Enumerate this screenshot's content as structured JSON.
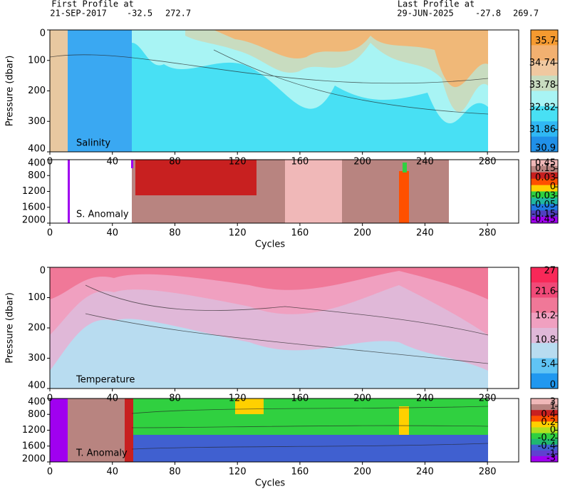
{
  "header": {
    "first_title": "First Profile at",
    "first_date": "21-SEP-2017",
    "first_lat": "-32.5",
    "first_lon": "272.7",
    "last_title": "Last Profile at",
    "last_date": "29-JUN-2025",
    "last_lat": "-27.8",
    "last_lon": "269.7"
  },
  "chart_data": [
    {
      "type": "heatmap",
      "label": "Salinity",
      "ylabel": "Pressure (dbar)",
      "xlim": [
        0,
        300
      ],
      "xticks": [
        0,
        40,
        80,
        120,
        160,
        200,
        240,
        280
      ],
      "ylim": [
        400,
        0
      ],
      "yticks": [
        0,
        100,
        200,
        300,
        400
      ],
      "colorbar": {
        "levels": [
          35.7,
          34.74,
          33.78,
          32.82,
          31.86,
          30.9
        ],
        "colors": [
          "#f59a30",
          "#f2b070",
          "#f0c8a0",
          "#c8dcc0",
          "#a8f4f4",
          "#48e0f4",
          "#30b8f4",
          "#2090e8"
        ]
      }
    },
    {
      "type": "heatmap",
      "label": "S. Anomaly",
      "xlabel": "Cycles",
      "xlim": [
        0,
        300
      ],
      "xticks": [
        0,
        40,
        80,
        120,
        160,
        200,
        240,
        280
      ],
      "ylim": [
        2000,
        400
      ],
      "yticks": [
        400,
        800,
        1200,
        1600,
        2000
      ],
      "colorbar": {
        "levels": [
          0.45,
          0.15,
          0.03,
          0,
          -0.03,
          -0.05,
          -0.15,
          -0.45
        ],
        "colors": [
          "#f0b8b8",
          "#b88480",
          "#c82020",
          "#ff5000",
          "#ffd000",
          "#30d040",
          "#20b8a0",
          "#2078e0",
          "#5040c0",
          "#a000f0"
        ]
      }
    },
    {
      "type": "heatmap",
      "label": "Temperature",
      "ylabel": "Pressure (dbar)",
      "xlim": [
        0,
        300
      ],
      "xticks": [
        0,
        40,
        80,
        120,
        160,
        200,
        240,
        280
      ],
      "ylim": [
        400,
        0
      ],
      "yticks": [
        0,
        100,
        200,
        300,
        400
      ],
      "colorbar": {
        "levels": [
          27,
          21.6,
          16.2,
          10.8,
          5.4,
          0
        ],
        "colors": [
          "#f82858",
          "#f04a78",
          "#f07898",
          "#f0a0c0",
          "#e0b8d8",
          "#b8dcf0",
          "#60c4f4",
          "#2098f0"
        ]
      }
    },
    {
      "type": "heatmap",
      "label": "T. Anomaly",
      "xlabel": "Cycles",
      "xlim": [
        0,
        300
      ],
      "xticks": [
        0,
        40,
        80,
        120,
        160,
        200,
        240,
        280
      ],
      "ylim": [
        2000,
        400
      ],
      "yticks": [
        400,
        800,
        1200,
        1600,
        2000
      ],
      "colorbar": {
        "levels": [
          3,
          1,
          0.4,
          0.2,
          0,
          -0.2,
          -0.4,
          -1,
          -3
        ],
        "colors": [
          "#f0b8b8",
          "#b88480",
          "#c82020",
          "#ff5000",
          "#ffd000",
          "#b0e020",
          "#30d040",
          "#20b870",
          "#4060d0",
          "#6040d0",
          "#a000f0"
        ]
      }
    }
  ]
}
